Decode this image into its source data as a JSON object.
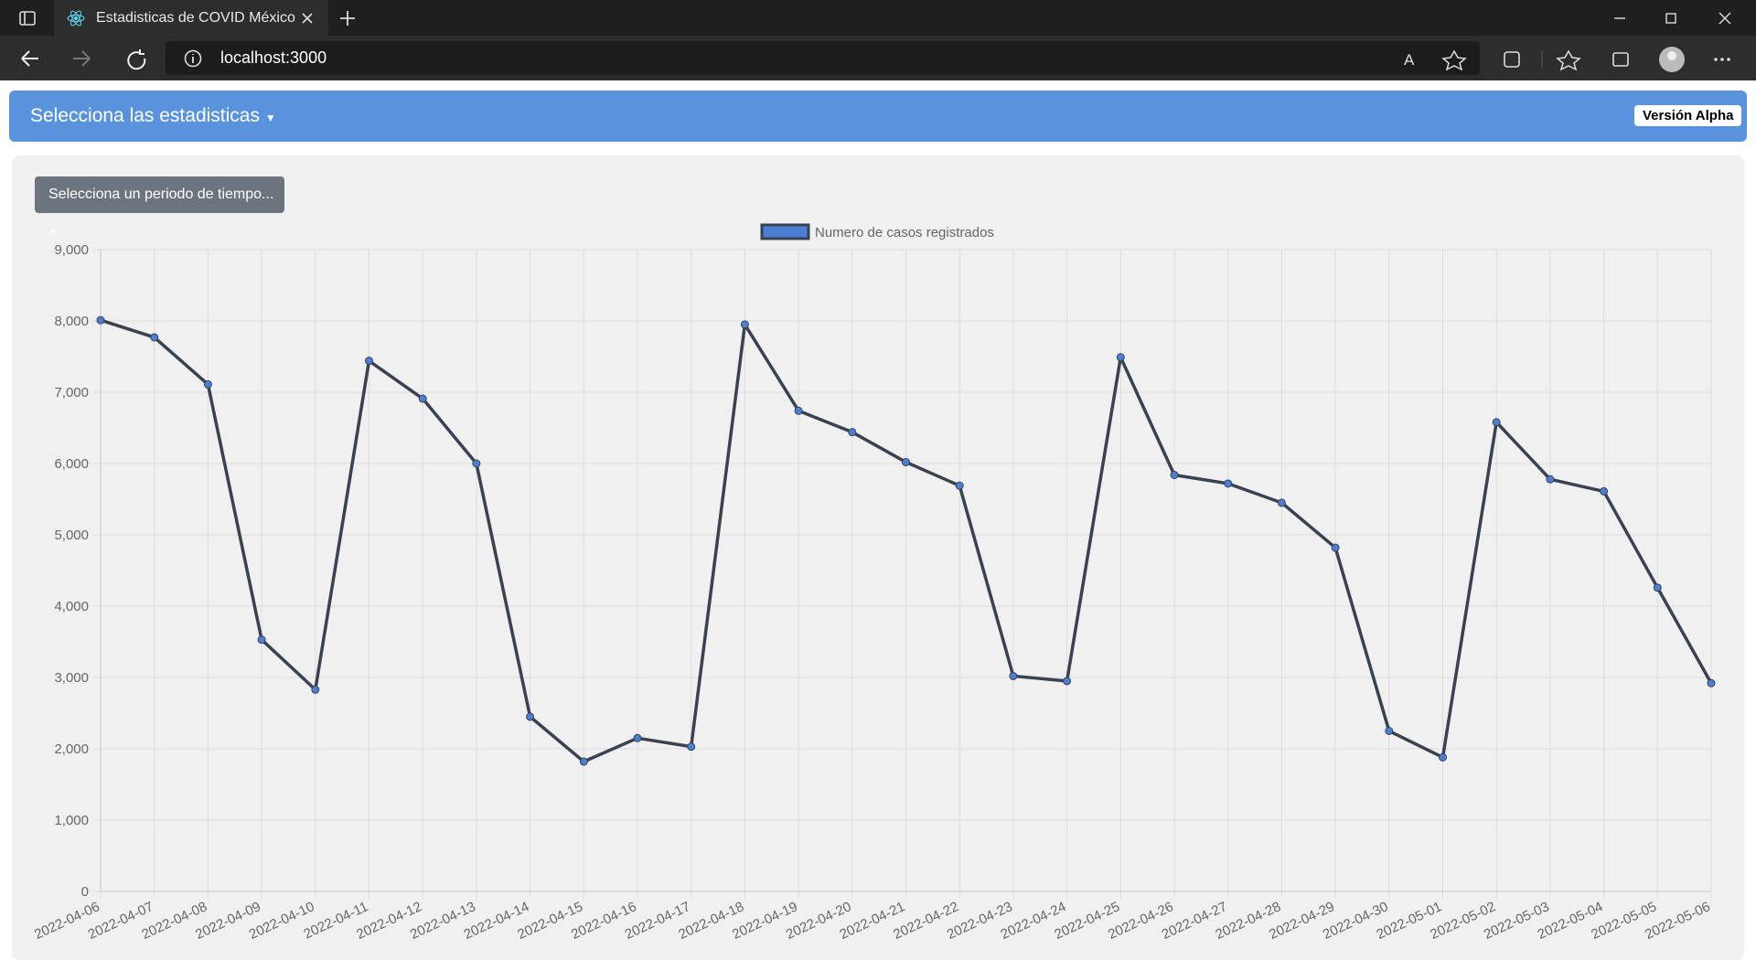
{
  "browser": {
    "tab_title": "Estadisticas de COVID México",
    "url": "localhost:3000"
  },
  "navbar": {
    "brand": "Selecciona las estadisticas",
    "badge": "Versión Alpha"
  },
  "controls": {
    "period_button": "Selecciona un periodo de tiempo..."
  },
  "chart_data": {
    "type": "line",
    "categories": [
      "2022-04-06",
      "2022-04-07",
      "2022-04-08",
      "2022-04-09",
      "2022-04-10",
      "2022-04-11",
      "2022-04-12",
      "2022-04-13",
      "2022-04-14",
      "2022-04-15",
      "2022-04-16",
      "2022-04-17",
      "2022-04-18",
      "2022-04-19",
      "2022-04-20",
      "2022-04-21",
      "2022-04-22",
      "2022-04-23",
      "2022-04-24",
      "2022-04-25",
      "2022-04-26",
      "2022-04-27",
      "2022-04-28",
      "2022-04-29",
      "2022-04-30",
      "2022-05-01",
      "2022-05-02",
      "2022-05-03",
      "2022-05-04",
      "2022-05-05",
      "2022-05-06"
    ],
    "series": [
      {
        "name": "Numero de casos registrados",
        "color": "#4a7fd4",
        "border_color": "#3a4252",
        "values": [
          8010,
          7770,
          7110,
          3530,
          2830,
          7440,
          6910,
          6000,
          2450,
          1820,
          2150,
          2030,
          7950,
          6740,
          6440,
          6020,
          5690,
          3020,
          2950,
          7490,
          5840,
          5720,
          5450,
          4820,
          2250,
          1880,
          6580,
          5780,
          5610,
          4260,
          2920
        ]
      }
    ],
    "ylim": [
      0,
      9000
    ],
    "yticks": [
      0,
      {
        "value": 1000,
        "label": "1,000"
      },
      {
        "value": 2000,
        "label": "2,000"
      },
      {
        "value": 3000,
        "label": "3,000"
      },
      {
        "value": 4000,
        "label": "4,000"
      },
      {
        "value": 5000,
        "label": "5,000"
      },
      {
        "value": 6000,
        "label": "6,000"
      },
      {
        "value": 7000,
        "label": "7,000"
      },
      {
        "value": 8000,
        "label": "8,000"
      },
      {
        "value": 9000,
        "label": "9,000"
      }
    ],
    "grid": true,
    "legend": "top"
  }
}
